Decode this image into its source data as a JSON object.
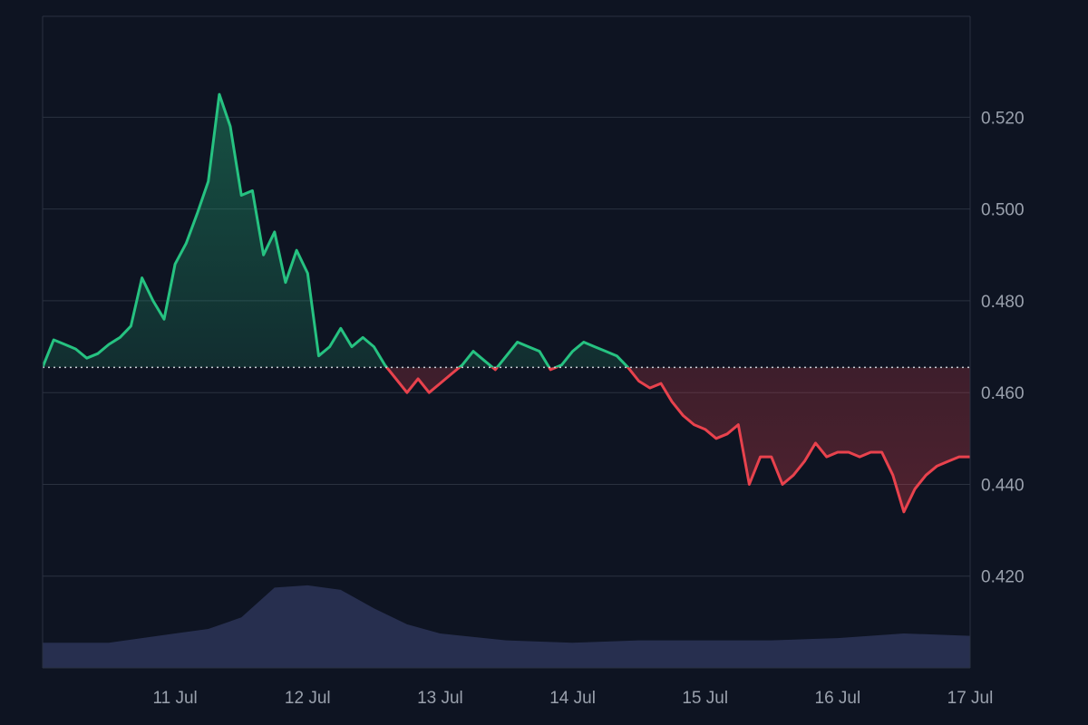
{
  "chart_data": {
    "type": "area",
    "title": "",
    "xlabel": "",
    "ylabel": "",
    "x_ticks": [
      "11 Jul",
      "12 Jul",
      "13 Jul",
      "14 Jul",
      "15 Jul",
      "16 Jul",
      "17 Jul"
    ],
    "y_ticks": [
      "0.420",
      "0.440",
      "0.460",
      "0.480",
      "0.500",
      "0.520"
    ],
    "y_axis_position": "right",
    "ylim": [
      0.4,
      0.542
    ],
    "xlim": [
      "2024-07-10T00:00",
      "2024-07-17T00:00"
    ],
    "grid": "horizontal",
    "baseline": 0.4655,
    "colors": {
      "above_baseline": "#26c281",
      "below_baseline": "#e8424d",
      "volume": "#2b3457",
      "grid": "#2a3140",
      "tick_text": "#9aa1ad",
      "background": "#0e1422"
    },
    "series": [
      {
        "type": "line",
        "x": [
          "2024-07-10T00:00",
          "2024-07-10T02:00",
          "2024-07-10T04:00",
          "2024-07-10T06:00",
          "2024-07-10T08:00",
          "2024-07-10T10:00",
          "2024-07-10T12:00",
          "2024-07-10T14:00",
          "2024-07-10T16:00",
          "2024-07-10T18:00",
          "2024-07-10T20:00",
          "2024-07-10T22:00",
          "2024-07-11T00:00",
          "2024-07-11T02:00",
          "2024-07-11T04:00",
          "2024-07-11T06:00",
          "2024-07-11T08:00",
          "2024-07-11T10:00",
          "2024-07-11T12:00",
          "2024-07-11T14:00",
          "2024-07-11T16:00",
          "2024-07-11T18:00",
          "2024-07-11T20:00",
          "2024-07-11T22:00",
          "2024-07-12T00:00",
          "2024-07-12T02:00",
          "2024-07-12T04:00",
          "2024-07-12T06:00",
          "2024-07-12T08:00",
          "2024-07-12T10:00",
          "2024-07-12T12:00",
          "2024-07-12T14:00",
          "2024-07-12T16:00",
          "2024-07-12T18:00",
          "2024-07-12T20:00",
          "2024-07-12T22:00",
          "2024-07-13T00:00",
          "2024-07-13T02:00",
          "2024-07-13T04:00",
          "2024-07-13T06:00",
          "2024-07-13T08:00",
          "2024-07-13T10:00",
          "2024-07-13T12:00",
          "2024-07-13T14:00",
          "2024-07-13T16:00",
          "2024-07-13T18:00",
          "2024-07-13T20:00",
          "2024-07-13T22:00",
          "2024-07-14T00:00",
          "2024-07-14T02:00",
          "2024-07-14T04:00",
          "2024-07-14T06:00",
          "2024-07-14T08:00",
          "2024-07-14T10:00",
          "2024-07-14T12:00",
          "2024-07-14T14:00",
          "2024-07-14T16:00",
          "2024-07-14T18:00",
          "2024-07-14T20:00",
          "2024-07-14T22:00",
          "2024-07-15T00:00",
          "2024-07-15T02:00",
          "2024-07-15T04:00",
          "2024-07-15T06:00",
          "2024-07-15T08:00",
          "2024-07-15T10:00",
          "2024-07-15T12:00",
          "2024-07-15T14:00",
          "2024-07-15T16:00",
          "2024-07-15T18:00",
          "2024-07-15T20:00",
          "2024-07-15T22:00",
          "2024-07-16T00:00",
          "2024-07-16T02:00",
          "2024-07-16T04:00",
          "2024-07-16T06:00",
          "2024-07-16T08:00",
          "2024-07-16T10:00",
          "2024-07-16T12:00",
          "2024-07-16T14:00",
          "2024-07-16T16:00",
          "2024-07-16T18:00",
          "2024-07-16T20:00",
          "2024-07-16T22:00",
          "2024-07-17T00:00"
        ],
        "values": [
          0.4655,
          0.4715,
          0.4705,
          0.4695,
          0.4675,
          0.4685,
          0.4705,
          0.472,
          0.4745,
          0.485,
          0.48,
          0.476,
          0.488,
          0.4925,
          0.499,
          0.506,
          0.525,
          0.518,
          0.503,
          0.504,
          0.49,
          0.495,
          0.484,
          0.491,
          0.486,
          0.468,
          0.47,
          0.474,
          0.47,
          0.472,
          0.47,
          0.466,
          0.463,
          0.46,
          0.463,
          0.46,
          0.462,
          0.464,
          0.466,
          0.469,
          0.467,
          0.465,
          0.468,
          0.471,
          0.47,
          0.469,
          0.465,
          0.466,
          0.469,
          0.471,
          0.47,
          0.469,
          0.468,
          0.4655,
          0.4625,
          0.461,
          0.462,
          0.458,
          0.455,
          0.453,
          0.452,
          0.45,
          0.451,
          0.453,
          0.44,
          0.446,
          0.446,
          0.44,
          0.442,
          0.445,
          0.449,
          0.446,
          0.447,
          0.447,
          0.446,
          0.447,
          0.447,
          0.442,
          0.434,
          0.439,
          0.442,
          0.444,
          0.445,
          0.446,
          0.446
        ]
      },
      {
        "type": "volume",
        "x": [
          "2024-07-10T00:00",
          "2024-07-10T12:00",
          "2024-07-11T00:00",
          "2024-07-11T06:00",
          "2024-07-11T12:00",
          "2024-07-11T18:00",
          "2024-07-12T00:00",
          "2024-07-12T06:00",
          "2024-07-12T12:00",
          "2024-07-12T18:00",
          "2024-07-13T00:00",
          "2024-07-13T12:00",
          "2024-07-14T00:00",
          "2024-07-14T12:00",
          "2024-07-15T00:00",
          "2024-07-15T12:00",
          "2024-07-16T00:00",
          "2024-07-16T12:00",
          "2024-07-17T00:00"
        ],
        "values": [
          0.4055,
          0.4055,
          0.4075,
          0.4085,
          0.411,
          0.4175,
          0.418,
          0.417,
          0.413,
          0.4095,
          0.4075,
          0.406,
          0.4055,
          0.406,
          0.406,
          0.406,
          0.4065,
          0.4075,
          0.407
        ]
      }
    ]
  }
}
